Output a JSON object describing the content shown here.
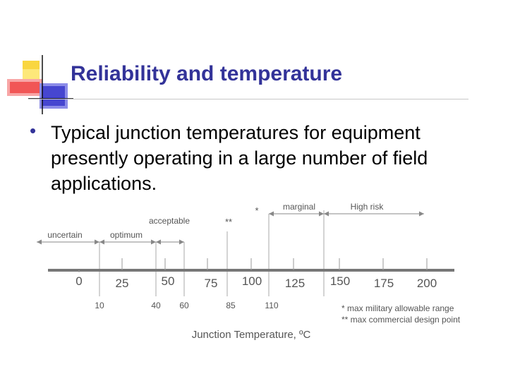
{
  "slide": {
    "title": "Reliability and temperature",
    "bullet": "Typical junction temperatures for equipment presently operating in a large number of field applications."
  },
  "chart_data": {
    "type": "diagram",
    "axis_title": "Junction Temperature, ºC",
    "major_ticks": [
      "0",
      "25",
      "50",
      "75",
      "100",
      "125",
      "150",
      "175",
      "200"
    ],
    "minor_ticks": [
      "10",
      "40",
      "60",
      "85",
      "110"
    ],
    "ranges": {
      "uncertain": "uncertain",
      "optimum": "optimum",
      "acceptable": "acceptable",
      "marginal": "marginal",
      "high_risk": "High risk"
    },
    "markers": {
      "single": "*",
      "double": "**"
    },
    "footnotes": [
      "* max military allowable range",
      "** max commercial design point"
    ]
  }
}
